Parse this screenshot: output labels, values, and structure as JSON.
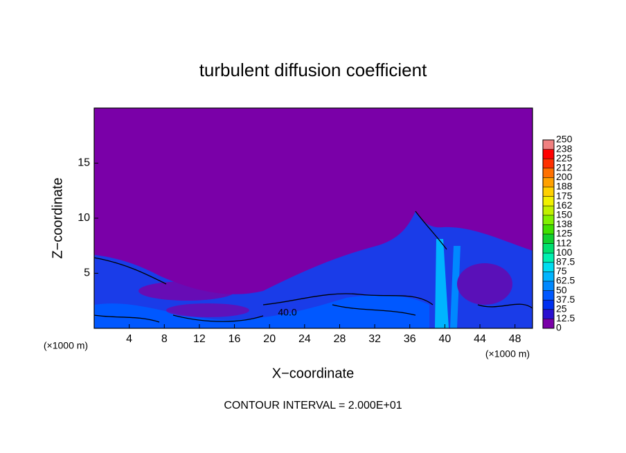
{
  "chart_data": {
    "type": "contour",
    "title": "turbulent diffusion coefficient",
    "x_label": "X−coordinate",
    "y_label": "Z−coordinate",
    "unit_label": "(×1000 m)",
    "annotation": "CONTOUR INTERVAL = 2.000E+01",
    "contour_label": "40.0",
    "xlim": [
      0,
      50
    ],
    "xticks": [
      4,
      8,
      12,
      16,
      20,
      24,
      28,
      32,
      36,
      40,
      44,
      48
    ],
    "ylim": [
      0,
      20
    ],
    "yticks": [
      5,
      10,
      15
    ],
    "clim": [
      0,
      250
    ],
    "cticks": [
      0,
      12.5,
      25,
      37.5,
      50,
      62.5,
      75,
      87.5,
      100,
      112.5,
      125,
      137.5,
      150,
      162.5,
      175,
      187.5,
      200,
      212.5,
      225,
      237.5,
      250
    ],
    "ctick_labels": [
      "0",
      "12.5",
      "25",
      "37.5",
      "50",
      "62.5",
      "75",
      "87.5",
      "100",
      "112",
      "125",
      "138",
      "150",
      "162",
      "175",
      "188",
      "200",
      "212",
      "225",
      "238",
      "250"
    ],
    "colors": [
      "#7a00a8",
      "#2a10d0",
      "#0030f0",
      "#0058ff",
      "#0088ff",
      "#00b4ff",
      "#00dcf0",
      "#00f0b0",
      "#00e070",
      "#10d030",
      "#40e000",
      "#80f000",
      "#c0f000",
      "#f0f000",
      "#ffd000",
      "#ffa000",
      "#ff7000",
      "#ff3000",
      "#ff0000",
      "#f08080"
    ]
  }
}
